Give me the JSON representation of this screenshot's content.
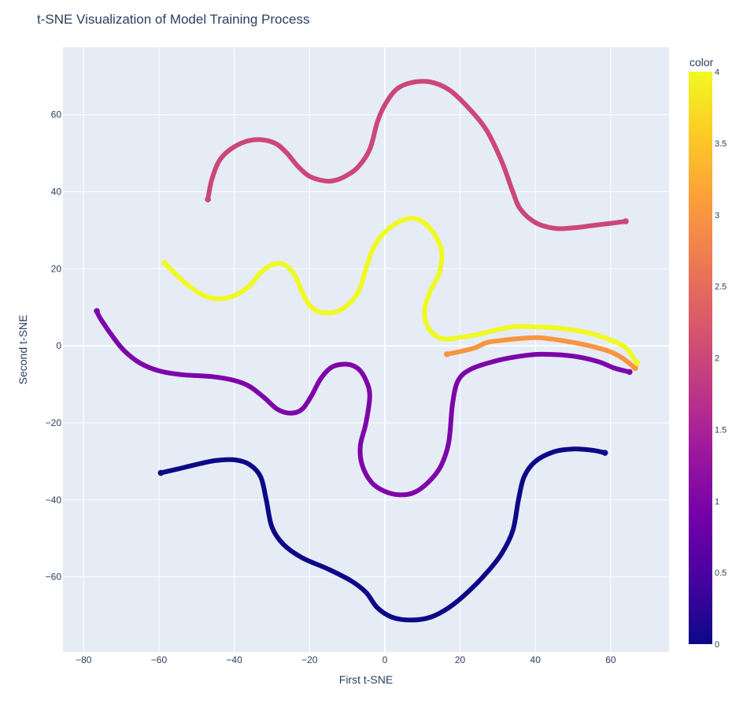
{
  "chart_data": {
    "type": "scatter",
    "title": "t-SNE Visualization of Model Training Process",
    "xlabel": "First t-SNE",
    "ylabel": "Second t-SNE",
    "xlim": [
      -85.5,
      75.5
    ],
    "ylim": [
      -79.5,
      77.5
    ],
    "x_ticks": [
      -80,
      -60,
      -40,
      -20,
      0,
      20,
      40,
      60
    ],
    "y_ticks": [
      -60,
      -40,
      -20,
      0,
      20,
      40,
      60
    ],
    "x_tick_labels": [
      "−80",
      "−60",
      "−40",
      "−20",
      "0",
      "20",
      "40",
      "60"
    ],
    "y_tick_labels": [
      "−60",
      "−40",
      "−20",
      "0",
      "20",
      "40",
      "60"
    ],
    "grid": true,
    "colorbar": {
      "title": "color",
      "range": [
        0,
        4
      ],
      "ticks": [
        0,
        0.5,
        1,
        1.5,
        2,
        2.5,
        3,
        3.5,
        4
      ],
      "tick_labels": [
        "0",
        "0.5",
        "1",
        "1.5",
        "2",
        "2.5",
        "3",
        "3.5",
        "4"
      ],
      "colorscale": [
        "#0d0887",
        "#46039f",
        "#7201a8",
        "#9c179e",
        "#bd3786",
        "#d8576b",
        "#ed7953",
        "#fb9f3a",
        "#fdca26",
        "#f0f921"
      ]
    },
    "series": [
      {
        "color_value": 0,
        "color": "#0d0887",
        "points": [
          [
            -59.5,
            -33.0
          ],
          [
            -55,
            -32
          ],
          [
            -50,
            -30.8
          ],
          [
            -45,
            -29.8
          ],
          [
            -40,
            -29.6
          ],
          [
            -36,
            -30.8
          ],
          [
            -33,
            -34
          ],
          [
            -31.5,
            -40
          ],
          [
            -30,
            -47
          ],
          [
            -27,
            -51.5
          ],
          [
            -22,
            -55
          ],
          [
            -15,
            -58
          ],
          [
            -9,
            -61
          ],
          [
            -5,
            -64
          ],
          [
            -2,
            -68
          ],
          [
            2,
            -70.5
          ],
          [
            7,
            -71.2
          ],
          [
            12,
            -70.5
          ],
          [
            17,
            -68
          ],
          [
            22,
            -64
          ],
          [
            27,
            -59
          ],
          [
            31,
            -54
          ],
          [
            34,
            -48
          ],
          [
            35.5,
            -40
          ],
          [
            37,
            -34
          ],
          [
            40,
            -30
          ],
          [
            45,
            -27.5
          ],
          [
            50,
            -26.8
          ],
          [
            55,
            -27.1
          ],
          [
            58.5,
            -27.8
          ]
        ]
      },
      {
        "color_value": 1,
        "color": "#7e03a8",
        "points": [
          [
            -76.5,
            9.0
          ],
          [
            -75.5,
            7
          ],
          [
            -72,
            2
          ],
          [
            -69,
            -1.5
          ],
          [
            -65,
            -4.5
          ],
          [
            -60,
            -6.5
          ],
          [
            -54,
            -7.5
          ],
          [
            -46,
            -8
          ],
          [
            -40,
            -9
          ],
          [
            -36,
            -10.5
          ],
          [
            -32,
            -13.5
          ],
          [
            -28.5,
            -16.5
          ],
          [
            -25,
            -17.5
          ],
          [
            -22,
            -16.5
          ],
          [
            -19.5,
            -13
          ],
          [
            -17,
            -8.5
          ],
          [
            -14,
            -5.5
          ],
          [
            -10,
            -4.8
          ],
          [
            -7,
            -6
          ],
          [
            -5,
            -9
          ],
          [
            -4,
            -13
          ],
          [
            -5,
            -20
          ],
          [
            -6.5,
            -26
          ],
          [
            -6,
            -31
          ],
          [
            -3.5,
            -35.5
          ],
          [
            0,
            -37.8
          ],
          [
            4,
            -38.7
          ],
          [
            8,
            -38
          ],
          [
            12,
            -35
          ],
          [
            15,
            -31
          ],
          [
            17,
            -25
          ],
          [
            18,
            -15
          ],
          [
            19.5,
            -9
          ],
          [
            23,
            -6
          ],
          [
            30,
            -3.8
          ],
          [
            36,
            -2.7
          ],
          [
            41,
            -2.2
          ],
          [
            47,
            -2.4
          ],
          [
            52,
            -3
          ],
          [
            57,
            -4.2
          ],
          [
            61,
            -5.8
          ],
          [
            65,
            -6.8
          ]
        ]
      },
      {
        "color_value": 2,
        "color": "#cc4778",
        "points": [
          [
            -47,
            38.0
          ],
          [
            -46,
            43
          ],
          [
            -44,
            48
          ],
          [
            -41,
            51
          ],
          [
            -37,
            53
          ],
          [
            -33,
            53.5
          ],
          [
            -29,
            52.5
          ],
          [
            -26,
            50
          ],
          [
            -23,
            46.5
          ],
          [
            -20,
            44
          ],
          [
            -16,
            42.8
          ],
          [
            -13,
            43
          ],
          [
            -10,
            44.3
          ],
          [
            -7,
            46.5
          ],
          [
            -4,
            51
          ],
          [
            -2,
            58
          ],
          [
            0,
            62.5
          ],
          [
            3,
            66.5
          ],
          [
            7,
            68.3
          ],
          [
            12,
            68.5
          ],
          [
            17,
            66.5
          ],
          [
            22,
            62
          ],
          [
            27,
            56
          ],
          [
            31,
            48
          ],
          [
            34,
            40
          ],
          [
            36,
            35.5
          ],
          [
            40,
            32
          ],
          [
            45,
            30.5
          ],
          [
            50,
            30.6
          ],
          [
            55,
            31.2
          ],
          [
            60,
            31.8
          ],
          [
            64,
            32.3
          ]
        ]
      },
      {
        "color_value": 3,
        "color": "#f89540",
        "points": [
          [
            16.5,
            -2.2
          ],
          [
            20,
            -1.5
          ],
          [
            24,
            -0.5
          ],
          [
            27,
            0.8
          ],
          [
            31,
            1.4
          ],
          [
            35,
            1.8
          ],
          [
            40,
            2.1
          ],
          [
            44,
            1.8
          ],
          [
            48,
            1.2
          ],
          [
            52,
            0.5
          ],
          [
            56,
            -0.4
          ],
          [
            60,
            -1.6
          ],
          [
            63,
            -3.1
          ],
          [
            66.5,
            -5.8
          ]
        ]
      },
      {
        "color_value": 4,
        "color": "#f0f921",
        "points": [
          [
            -58.5,
            21.5
          ],
          [
            -56,
            19
          ],
          [
            -52,
            15.5
          ],
          [
            -48,
            13
          ],
          [
            -44,
            12.2
          ],
          [
            -40,
            13
          ],
          [
            -36,
            15.5
          ],
          [
            -33,
            19
          ],
          [
            -30,
            21
          ],
          [
            -27,
            21.2
          ],
          [
            -24,
            18.5
          ],
          [
            -22,
            14
          ],
          [
            -20,
            10.5
          ],
          [
            -17,
            8.7
          ],
          [
            -13,
            8.8
          ],
          [
            -10,
            10.5
          ],
          [
            -7,
            14
          ],
          [
            -5,
            20
          ],
          [
            -3,
            25.5
          ],
          [
            0,
            29.5
          ],
          [
            4,
            32.3
          ],
          [
            8,
            33
          ],
          [
            12,
            30.5
          ],
          [
            15,
            25
          ],
          [
            14.5,
            19
          ],
          [
            12,
            14
          ],
          [
            10.5,
            8.5
          ],
          [
            12,
            4
          ],
          [
            15.5,
            1.8
          ],
          [
            20,
            2.2
          ],
          [
            25,
            3
          ],
          [
            30,
            4.2
          ],
          [
            35,
            5
          ],
          [
            40,
            4.9
          ],
          [
            45,
            4.7
          ],
          [
            50,
            4.1
          ],
          [
            55,
            3.1
          ],
          [
            60,
            1.5
          ],
          [
            64,
            -0.5
          ],
          [
            67,
            -4.5
          ]
        ]
      }
    ]
  }
}
